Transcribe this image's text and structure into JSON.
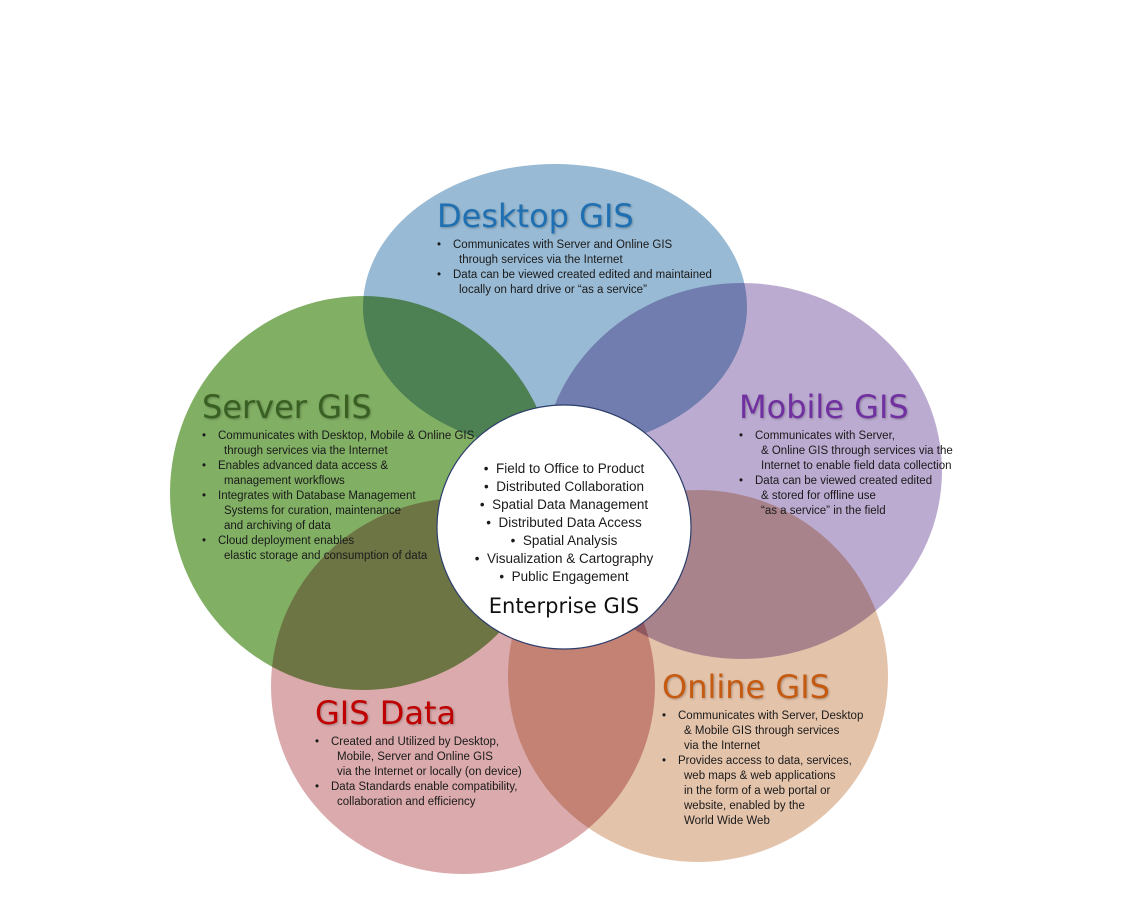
{
  "colors": {
    "desktop": "#92b6d2",
    "mobile": "#b8a6cf",
    "server": "#7aab5c",
    "online": "#e3c0a6",
    "gisdata": "#d8a5a8",
    "center": "#ffffff",
    "desktop_title": "#1f6fb3",
    "mobile_title": "#7030a0",
    "server_title": "#3a5f22",
    "online_title": "#c55a11",
    "gisdata_title": "#c00000",
    "center_title": "#111111"
  },
  "desktop": {
    "title": "Desktop GIS",
    "bullets": [
      [
        "Communicates with Server and Online GIS",
        "through services via the Internet"
      ],
      [
        "Data can be viewed created edited and maintained",
        "locally on hard drive or “as a service”"
      ]
    ]
  },
  "mobile": {
    "title": "Mobile GIS",
    "bullets": [
      [
        "Communicates with Server,",
        "& Online GIS through services via the",
        "Internet to enable field data collection"
      ],
      [
        "Data can be viewed created edited",
        "& stored for offline use",
        "“as a service” in the field"
      ]
    ]
  },
  "server": {
    "title": "Server GIS",
    "bullets": [
      [
        "Communicates with Desktop, Mobile & Online GIS",
        "through services via the Internet"
      ],
      [
        "Enables advanced data access &",
        "management workflows"
      ],
      [
        "Integrates with Database Management",
        "Systems for curation, maintenance",
        "and archiving of data"
      ],
      [
        "Cloud deployment enables",
        "elastic storage and consumption of data"
      ]
    ]
  },
  "online": {
    "title": "Online GIS",
    "bullets": [
      [
        "Communicates with Server, Desktop",
        "& Mobile GIS through services",
        "via the Internet"
      ],
      [
        "Provides access to data, services,",
        "web maps & web applications",
        "in the form of a web portal or",
        "website, enabled by the",
        "World Wide Web"
      ]
    ]
  },
  "gisdata": {
    "title": "GIS Data",
    "bullets": [
      [
        "Created and Utilized by Desktop,",
        "Mobile, Server and Online GIS",
        "via the Internet or locally (on device)"
      ],
      [
        "Data Standards enable compatibility,",
        "collaboration and efficiency"
      ]
    ]
  },
  "center": {
    "items": [
      "Field to Office to Product",
      "Distributed Collaboration",
      "Spatial Data Management",
      "Distributed Data Access",
      "Spatial Analysis",
      "Visualization & Cartography",
      "Public Engagement"
    ],
    "title": "Enterprise GIS"
  }
}
